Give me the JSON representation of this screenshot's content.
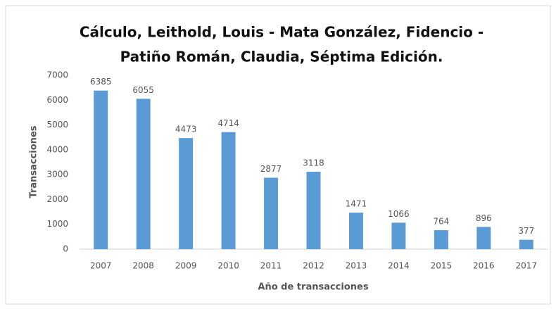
{
  "chart_data": {
    "type": "bar",
    "title": [
      "Cálculo, Leithold, Louis - Mata González, Fidencio -",
      "Patiño Román, Claudia, Séptima Edición."
    ],
    "x_label": "Año de transacciones",
    "y_label": "Transacciones",
    "categories": [
      "2007",
      "2008",
      "2009",
      "2010",
      "2011",
      "2012",
      "2013",
      "2014",
      "2015",
      "2016",
      "2017"
    ],
    "values": [
      6385,
      6055,
      4473,
      4714,
      2877,
      3118,
      1471,
      1066,
      764,
      896,
      377
    ],
    "color": "#5b9bd5",
    "ylim": [
      0,
      7000
    ],
    "yticks": [
      0,
      1000,
      2000,
      3000,
      4000,
      5000,
      6000,
      7000
    ],
    "grid": false
  }
}
